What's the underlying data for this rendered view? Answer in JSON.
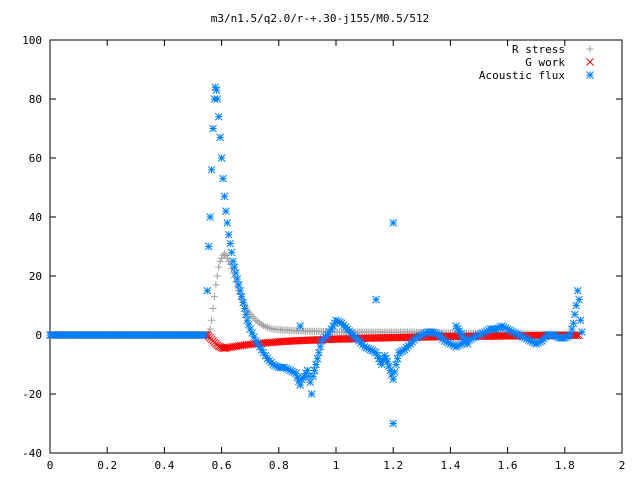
{
  "colors": {
    "r_stress": "#a0a0a0",
    "g_work": "#ff0000",
    "acoustic_flux": "#0080ff",
    "axis": "#000000"
  },
  "chart_data": {
    "type": "scatter",
    "title": "m3/n1.5/q2.0/r-+.30-j155/M0.5/512",
    "xlabel": "",
    "ylabel": "",
    "xlim": [
      0,
      2
    ],
    "ylim": [
      -40,
      100
    ],
    "x_ticks": [
      "0",
      "0.2",
      "0.4",
      "0.6",
      "0.8",
      "1",
      "1.2",
      "1.4",
      "1.6",
      "1.8",
      "2"
    ],
    "y_ticks": [
      "-40",
      "-20",
      "0",
      "20",
      "40",
      "60",
      "80",
      "100"
    ],
    "legend_position": "top-right",
    "grid": false,
    "series": [
      {
        "name": "R stress",
        "marker": "plus",
        "points": [
          [
            0.0,
            0
          ],
          [
            0.1,
            0
          ],
          [
            0.2,
            0
          ],
          [
            0.3,
            0
          ],
          [
            0.4,
            0
          ],
          [
            0.5,
            0
          ],
          [
            0.55,
            0
          ],
          [
            0.56,
            2
          ],
          [
            0.565,
            5
          ],
          [
            0.57,
            9
          ],
          [
            0.575,
            13
          ],
          [
            0.58,
            17
          ],
          [
            0.585,
            20
          ],
          [
            0.59,
            23
          ],
          [
            0.595,
            25
          ],
          [
            0.6,
            26
          ],
          [
            0.605,
            27
          ],
          [
            0.61,
            27.5
          ],
          [
            0.615,
            27
          ],
          [
            0.62,
            26
          ],
          [
            0.63,
            24
          ],
          [
            0.64,
            21
          ],
          [
            0.65,
            18
          ],
          [
            0.66,
            15
          ],
          [
            0.67,
            12.5
          ],
          [
            0.68,
            10.5
          ],
          [
            0.69,
            8.5
          ],
          [
            0.7,
            7
          ],
          [
            0.72,
            5
          ],
          [
            0.74,
            3.5
          ],
          [
            0.76,
            2.5
          ],
          [
            0.78,
            2
          ],
          [
            0.8,
            1.8
          ],
          [
            0.85,
            1.5
          ],
          [
            0.9,
            1.3
          ],
          [
            0.95,
            1.2
          ],
          [
            1.0,
            1
          ],
          [
            1.05,
            1
          ],
          [
            1.1,
            1
          ],
          [
            1.15,
            1
          ],
          [
            1.2,
            1
          ],
          [
            1.25,
            1
          ],
          [
            1.3,
            0.9
          ],
          [
            1.35,
            0.8
          ],
          [
            1.4,
            0.7
          ],
          [
            1.45,
            0.6
          ],
          [
            1.5,
            0.5
          ],
          [
            1.55,
            0.5
          ],
          [
            1.6,
            0.4
          ],
          [
            1.65,
            0.4
          ],
          [
            1.7,
            0.3
          ],
          [
            1.75,
            0.3
          ],
          [
            1.8,
            0.2
          ],
          [
            1.85,
            0.2
          ]
        ]
      },
      {
        "name": "G work",
        "marker": "cross",
        "points": [
          [
            0.0,
            0
          ],
          [
            0.1,
            0
          ],
          [
            0.2,
            0
          ],
          [
            0.3,
            0
          ],
          [
            0.4,
            0
          ],
          [
            0.5,
            0
          ],
          [
            0.55,
            0
          ],
          [
            0.56,
            -1
          ],
          [
            0.57,
            -2
          ],
          [
            0.58,
            -3
          ],
          [
            0.59,
            -3.8
          ],
          [
            0.6,
            -4.3
          ],
          [
            0.61,
            -4.5
          ],
          [
            0.62,
            -4.3
          ],
          [
            0.64,
            -4
          ],
          [
            0.66,
            -3.7
          ],
          [
            0.68,
            -3.4
          ],
          [
            0.7,
            -3.2
          ],
          [
            0.72,
            -3
          ],
          [
            0.74,
            -2.8
          ],
          [
            0.76,
            -2.6
          ],
          [
            0.78,
            -2.5
          ],
          [
            0.8,
            -2.3
          ],
          [
            0.85,
            -2
          ],
          [
            0.9,
            -1.8
          ],
          [
            0.95,
            -1.6
          ],
          [
            1.0,
            -1.4
          ],
          [
            1.05,
            -1.3
          ],
          [
            1.1,
            -1.1
          ],
          [
            1.15,
            -1
          ],
          [
            1.2,
            -0.9
          ],
          [
            1.25,
            -0.8
          ],
          [
            1.3,
            -0.7
          ],
          [
            1.35,
            -0.6
          ],
          [
            1.4,
            -0.5
          ],
          [
            1.45,
            -0.5
          ],
          [
            1.5,
            -0.4
          ],
          [
            1.55,
            -0.4
          ],
          [
            1.6,
            -0.3
          ],
          [
            1.65,
            -0.3
          ],
          [
            1.7,
            -0.2
          ],
          [
            1.75,
            -0.2
          ],
          [
            1.8,
            -0.1
          ],
          [
            1.85,
            -0.1
          ]
        ]
      },
      {
        "name": "Acoustic flux",
        "marker": "star",
        "points": [
          [
            0.0,
            0
          ],
          [
            0.05,
            0
          ],
          [
            0.1,
            0
          ],
          [
            0.15,
            0
          ],
          [
            0.2,
            0
          ],
          [
            0.25,
            0
          ],
          [
            0.3,
            0
          ],
          [
            0.35,
            0
          ],
          [
            0.4,
            0
          ],
          [
            0.45,
            0
          ],
          [
            0.5,
            0
          ],
          [
            0.54,
            0
          ],
          [
            0.55,
            15
          ],
          [
            0.555,
            30
          ],
          [
            0.56,
            40
          ],
          [
            0.565,
            56
          ],
          [
            0.57,
            70
          ],
          [
            0.575,
            80
          ],
          [
            0.578,
            84
          ],
          [
            0.582,
            83
          ],
          [
            0.585,
            80
          ],
          [
            0.59,
            74
          ],
          [
            0.595,
            67
          ],
          [
            0.6,
            60
          ],
          [
            0.605,
            53
          ],
          [
            0.61,
            47
          ],
          [
            0.615,
            42
          ],
          [
            0.62,
            38
          ],
          [
            0.625,
            34
          ],
          [
            0.63,
            31
          ],
          [
            0.635,
            28
          ],
          [
            0.64,
            25
          ],
          [
            0.65,
            21
          ],
          [
            0.66,
            17
          ],
          [
            0.67,
            13
          ],
          [
            0.68,
            9
          ],
          [
            0.69,
            5
          ],
          [
            0.7,
            2
          ],
          [
            0.72,
            -2
          ],
          [
            0.74,
            -5
          ],
          [
            0.76,
            -8
          ],
          [
            0.78,
            -10
          ],
          [
            0.8,
            -11
          ],
          [
            0.82,
            -11
          ],
          [
            0.84,
            -12
          ],
          [
            0.86,
            -13
          ],
          [
            0.875,
            -17
          ],
          [
            0.88,
            -15
          ],
          [
            0.89,
            -14
          ],
          [
            0.9,
            -12
          ],
          [
            0.91,
            -16
          ],
          [
            0.915,
            -20
          ],
          [
            0.92,
            -14
          ],
          [
            0.93,
            -10
          ],
          [
            0.94,
            -6
          ],
          [
            0.95,
            -2
          ],
          [
            0.97,
            0
          ],
          [
            0.99,
            3
          ],
          [
            1.0,
            5
          ],
          [
            1.02,
            4
          ],
          [
            1.04,
            2
          ],
          [
            1.06,
            0
          ],
          [
            1.08,
            -2
          ],
          [
            1.1,
            -4
          ],
          [
            1.12,
            -5
          ],
          [
            1.14,
            -6
          ],
          [
            1.15,
            -8
          ],
          [
            1.16,
            -10
          ],
          [
            1.17,
            -7
          ],
          [
            1.18,
            -9
          ],
          [
            1.19,
            -12
          ],
          [
            1.2,
            -15
          ],
          [
            1.21,
            -10
          ],
          [
            1.22,
            -6
          ],
          [
            1.24,
            -5
          ],
          [
            1.26,
            -3
          ],
          [
            1.28,
            -1
          ],
          [
            1.3,
            0
          ],
          [
            1.32,
            1
          ],
          [
            1.34,
            1
          ],
          [
            1.36,
            0
          ],
          [
            1.38,
            -2
          ],
          [
            1.4,
            -3
          ],
          [
            1.42,
            -4
          ],
          [
            1.44,
            -3
          ],
          [
            1.46,
            -2
          ],
          [
            1.48,
            -1
          ],
          [
            1.5,
            0
          ],
          [
            1.52,
            1
          ],
          [
            1.54,
            2
          ],
          [
            1.56,
            2
          ],
          [
            1.58,
            3
          ],
          [
            1.6,
            2
          ],
          [
            1.62,
            1
          ],
          [
            1.64,
            0
          ],
          [
            1.66,
            -1
          ],
          [
            1.68,
            -2
          ],
          [
            1.7,
            -3
          ],
          [
            1.72,
            -2
          ],
          [
            1.74,
            0
          ],
          [
            1.76,
            0
          ],
          [
            1.78,
            -1
          ],
          [
            1.8,
            -1
          ],
          [
            1.82,
            0
          ],
          [
            1.83,
            4
          ],
          [
            1.84,
            10
          ],
          [
            1.845,
            15
          ],
          [
            1.85,
            12
          ],
          [
            1.855,
            5
          ],
          [
            1.86,
            1
          ],
          [
            0.875,
            3
          ],
          [
            1.14,
            12
          ],
          [
            1.2,
            38
          ],
          [
            1.2,
            -30
          ],
          [
            1.42,
            3
          ],
          [
            1.46,
            -3
          ]
        ]
      }
    ]
  }
}
